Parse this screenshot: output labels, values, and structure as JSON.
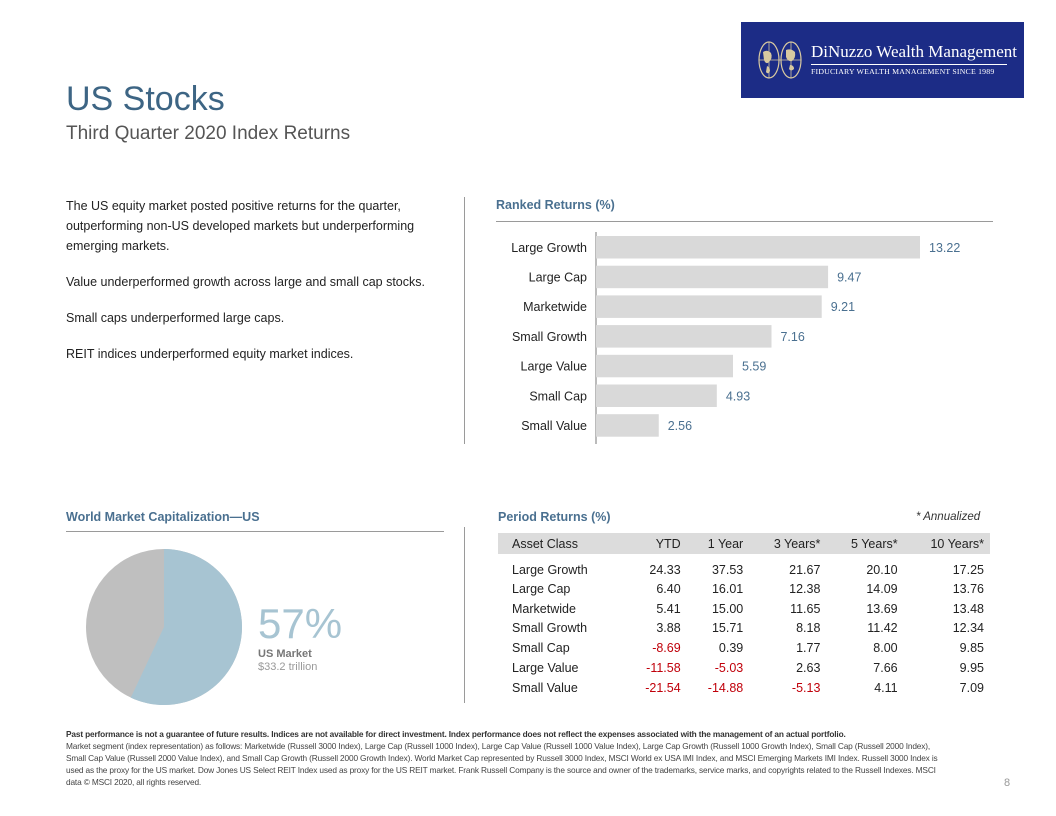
{
  "header": {
    "title": "US Stocks",
    "subtitle": "Third Quarter 2020 Index Returns"
  },
  "logo": {
    "name": "DiNuzzo Wealth Management",
    "tagline": "FIDUCIARY WEALTH MANAGEMENT SINCE 1989",
    "background": "#1c2c86"
  },
  "commentary": [
    "The US equity market posted positive returns for the quarter, outperforming non-US developed  markets but underperforming emerging markets.",
    "Value underperformed  growth across large and small cap stocks.",
    "Small caps underperformed  large caps.",
    "REIT indices underperformed  equity market indices."
  ],
  "ranked_returns": {
    "title": "Ranked Returns (%)"
  },
  "chart_data": {
    "type": "bar",
    "orientation": "horizontal",
    "categories": [
      "Large Growth",
      "Large Cap",
      "Marketwide",
      "Small Growth",
      "Large Value",
      "Small Cap",
      "Small Value"
    ],
    "values": [
      13.22,
      9.47,
      9.21,
      7.16,
      5.59,
      4.93,
      2.56
    ],
    "title": "Ranked Returns (%)",
    "bar_color": "#d9d9d9",
    "label_color": "#4a7090"
  },
  "world_cap": {
    "title": "World Market Capitalization—US",
    "percent_label": "57%",
    "percent": 57,
    "market_label": "US Market",
    "market_value": "$33.2 trillion",
    "us_color": "#a7c4d2",
    "rest_color": "#bfbfbf"
  },
  "period_returns": {
    "title": "Period Returns (%)",
    "note": "* Annualized",
    "columns": [
      "Asset Class",
      "YTD",
      "1 Year",
      "3 Years*",
      "5 Years*",
      "10 Years*"
    ],
    "rows": [
      [
        "Large Growth",
        "24.33",
        "37.53",
        "21.67",
        "20.10",
        "17.25"
      ],
      [
        "Large Cap",
        "6.40",
        "16.01",
        "12.38",
        "14.09",
        "13.76"
      ],
      [
        "Marketwide",
        "5.41",
        "15.00",
        "11.65",
        "13.69",
        "13.48"
      ],
      [
        "Small Growth",
        "3.88",
        "15.71",
        "8.18",
        "11.42",
        "12.34"
      ],
      [
        "Small Cap",
        "-8.69",
        "0.39",
        "1.77",
        "8.00",
        "9.85"
      ],
      [
        "Large Value",
        "-11.58",
        "-5.03",
        "2.63",
        "7.66",
        "9.95"
      ],
      [
        "Small Value",
        "-21.54",
        "-14.88",
        "-5.13",
        "4.11",
        "7.09"
      ]
    ],
    "negative_color": "#c0000a"
  },
  "footer": {
    "disclaimer": "Past performance is not a guarantee of future results. Indices are not available for direct investment. Index performance does not reflect the expenses associated with the management of an actual portfolio.",
    "notes": "Market segment (index representation) as follows: Marketwide (Russell 3000 Index), Large Cap (Russell 1000 Index), Large Cap Value (Russell 1000 Value Index), Large Cap Growth (Russell 1000 Growth Index), Small Cap (Russell 2000 Index), Small Cap Value (Russell 2000 Value Index), and Small Cap Growth (Russell 2000 Growth Index). World Market Cap represented by Russell 3000 Index, MSCI World ex USA IMI Index, and MSCI Emerging Markets IMI Index. Russell 3000 Index is used as the proxy for the US market. Dow Jones US Select REIT Index used as proxy for the US REIT market. Frank Russell Company is the source and owner of the trademarks, service marks, and copyrights related to the Russell Indexes. MSCI data © MSCI 2020, all rights reserved.",
    "page_number": "8"
  }
}
